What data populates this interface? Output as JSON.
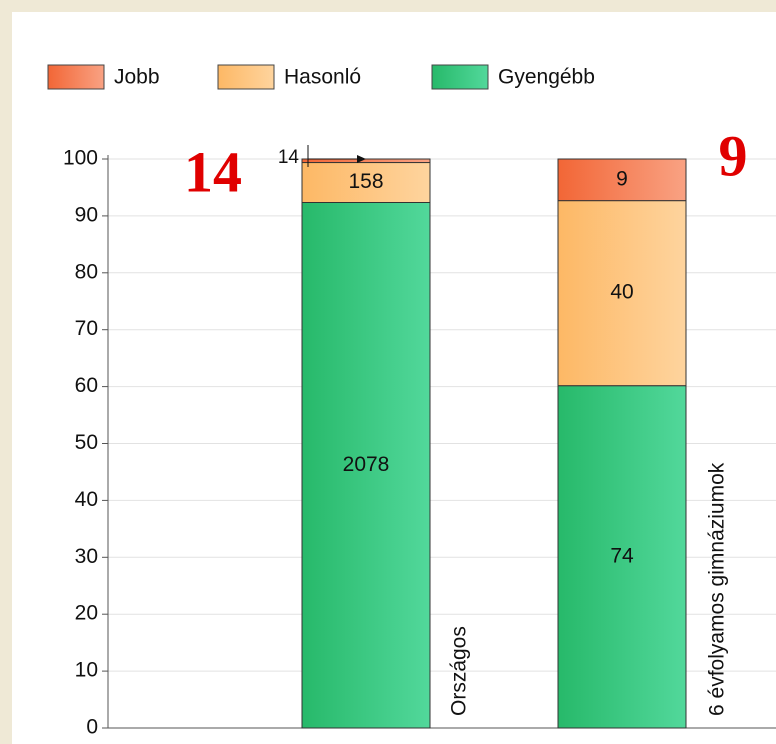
{
  "chart_data": {
    "type": "bar",
    "stacking": "percent",
    "categories": [
      "Országos",
      "6 évfolyamos gimnáziumok"
    ],
    "series": [
      {
        "name": "Gyengébb",
        "color": "#2bbd6e",
        "values": [
          2078,
          74
        ]
      },
      {
        "name": "Hasonló",
        "color": "#fdbd72",
        "values": [
          158,
          40
        ]
      },
      {
        "name": "Jobb",
        "color": "#f36d3e",
        "values": [
          14,
          9
        ]
      }
    ],
    "legend_order": [
      2,
      1,
      0
    ],
    "ylim": [
      0,
      100
    ],
    "yticks": [
      0,
      10,
      20,
      30,
      40,
      50,
      60,
      70,
      80,
      90,
      100
    ],
    "grid": true,
    "annotations": [
      "14",
      "9"
    ]
  }
}
